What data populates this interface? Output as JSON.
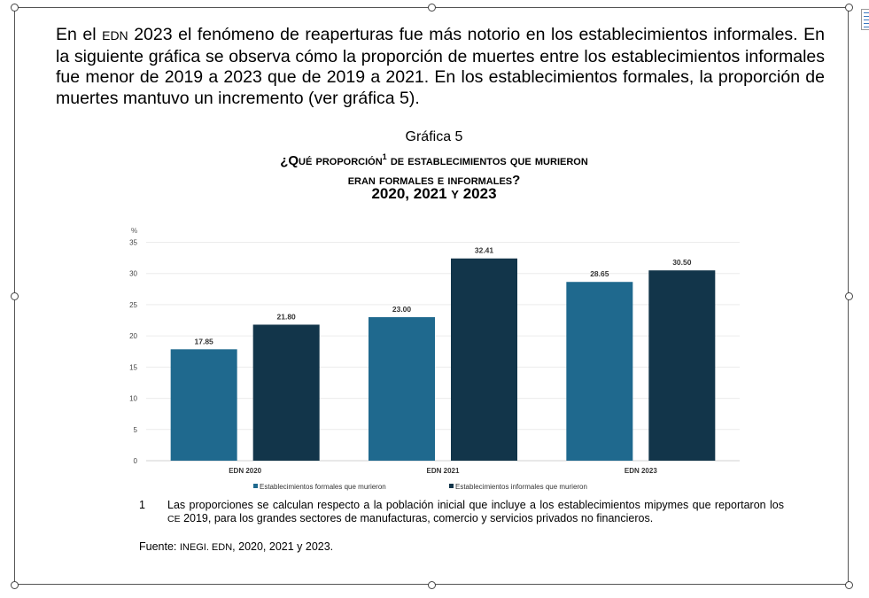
{
  "paragraph": {
    "pre": "En el ",
    "edn": "EDN",
    "post": " 2023 el fenómeno de reaperturas fue más notorio en los establecimientos informales. En la siguiente gráfica se observa cómo la proporción de muertes entre los establecimientos informales fue menor de 2019 a 2023 que de 2019 a 2021. En los establecimientos formales, la proporción de muertes mantuvo un incremento (ver gráfica 5)."
  },
  "chart_heading": {
    "label": "Gráfica 5",
    "line1_pre": "¿Qué proporción",
    "sup": "1",
    "line1_post": " de establecimientos que murieron",
    "line2": "eran formales e informales?",
    "line3_a": "2020, 2021",
    "line3_y": "y",
    "line3_b": "2023"
  },
  "chart_data": {
    "type": "bar",
    "ylabel": "%",
    "ylim": [
      0,
      35
    ],
    "yticks": [
      "0",
      "5",
      "10",
      "15",
      "20",
      "25",
      "30",
      "35"
    ],
    "grid": true,
    "legend_position": "bottom",
    "categories": [
      "EDN 2020",
      "EDN 2021",
      "EDN 2023"
    ],
    "series": [
      {
        "name": "Establecimientos formales que murieron",
        "color": "#1f698e",
        "values": [
          17.85,
          23.0,
          28.65
        ],
        "labels": [
          "17.85",
          "23.00",
          "28.65"
        ]
      },
      {
        "name": "Establecimientos informales que murieron",
        "color": "#12354a",
        "values": [
          21.8,
          32.41,
          30.5
        ],
        "labels": [
          "21.80",
          "32.41",
          "30.50"
        ]
      }
    ]
  },
  "footnote": {
    "number": "1",
    "text_pre": "Las proporciones se calculan respecto a la población inicial que incluye a los establecimientos mipymes que reportaron los ",
    "ce": "CE",
    "text_post": " 2019, para los grandes sectores de manufacturas, comercio y servicios privados no financieros."
  },
  "source": {
    "label": "Fuente: ",
    "org": "INEGI. EDN",
    "years": ", 2020, 2021 y 2023."
  }
}
